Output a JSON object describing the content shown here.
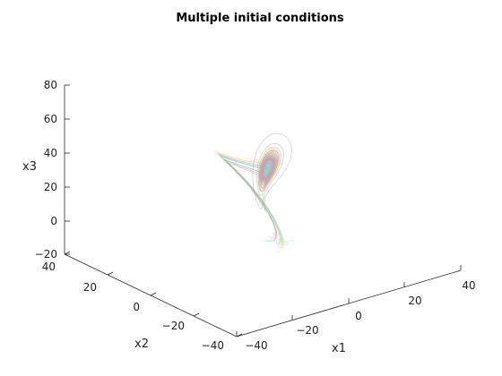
{
  "chart_data": {
    "type": "line",
    "title": "Multiple initial conditions",
    "xlabel": "x1",
    "ylabel": "x2",
    "zlabel": "x3",
    "xlim": [
      -40,
      40
    ],
    "ylim": [
      -40,
      40
    ],
    "zlim": [
      -20,
      80
    ],
    "x_ticks": [
      "−40",
      "−20",
      "0",
      "20",
      "40"
    ],
    "y_ticks": [
      "−40",
      "−20",
      "0",
      "20",
      "40"
    ],
    "z_ticks": [
      "−20",
      "0",
      "20",
      "40",
      "60",
      "80"
    ],
    "grid": false,
    "legend": "none",
    "view": "3d",
    "series_count": 16,
    "colors": [
      "#f7e87a",
      "#e6d07a",
      "#b9e6a8",
      "#9fd8e8",
      "#c9b8f0",
      "#f0a8e0",
      "#a8c8f8",
      "#d8d880",
      "#90d8b0",
      "#e8b8a0",
      "#b0b0e8",
      "#c8e890",
      "#88c8d0",
      "#e0a0c8",
      "#a0a0a0",
      "#98b890"
    ]
  }
}
